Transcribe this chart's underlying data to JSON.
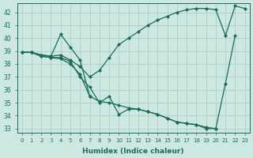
{
  "xlabel": "Humidex (Indice chaleur)",
  "bg_color": "#cce8e0",
  "grid_color": "#aad0c8",
  "line_color": "#1a6b5a",
  "xlim": [
    -0.5,
    23.5
  ],
  "ylim": [
    32.7,
    42.7
  ],
  "yticks": [
    33,
    34,
    35,
    36,
    37,
    38,
    39,
    40,
    41,
    42
  ],
  "xticks": [
    0,
    1,
    2,
    3,
    4,
    5,
    6,
    7,
    8,
    9,
    10,
    11,
    12,
    13,
    14,
    15,
    16,
    17,
    18,
    19,
    20,
    21,
    22,
    23
  ],
  "series": [
    {
      "comment": "Triangle line: 0->4 up, 4->5->6->7 down",
      "x": [
        0,
        1,
        2,
        3,
        4,
        5,
        6,
        7
      ],
      "y": [
        38.9,
        38.9,
        38.7,
        38.6,
        40.3,
        39.3,
        38.3,
        35.5
      ]
    },
    {
      "x": [
        0,
        1,
        2,
        3,
        4,
        5,
        6,
        7,
        8,
        9,
        10,
        11,
        12,
        13,
        14,
        15,
        16,
        17,
        18,
        19,
        20,
        21,
        22,
        23
      ],
      "y": [
        38.9,
        38.9,
        38.7,
        38.6,
        38.7,
        38.3,
        37.8,
        37.0,
        37.5,
        38.5,
        39.5,
        40.0,
        40.5,
        41.0,
        41.4,
        41.7,
        42.0,
        42.2,
        42.3,
        42.3,
        42.2,
        40.2,
        42.5,
        42.3
      ]
    },
    {
      "x": [
        0,
        1,
        2,
        3,
        4,
        5,
        6,
        7,
        8,
        9,
        10,
        11,
        12,
        13,
        14,
        15,
        16,
        17,
        18,
        19,
        20,
        21,
        22,
        23
      ],
      "y": [
        38.9,
        38.9,
        38.6,
        38.5,
        38.5,
        38.2,
        37.0,
        36.2,
        35.0,
        35.5,
        34.1,
        34.5,
        34.5,
        34.3,
        34.1,
        33.8,
        33.5,
        33.4,
        33.3,
        33.1,
        33.0,
        36.5,
        40.2,
        null
      ]
    },
    {
      "x": [
        0,
        1,
        2,
        3,
        4,
        5,
        6,
        7,
        8,
        9,
        10,
        11,
        12,
        13,
        14,
        15,
        16,
        17,
        18,
        19,
        20
      ],
      "y": [
        38.9,
        38.9,
        38.6,
        38.5,
        38.4,
        38.0,
        37.2,
        35.5,
        35.1,
        35.0,
        34.8,
        34.6,
        34.5,
        34.3,
        34.1,
        33.8,
        33.5,
        33.4,
        33.3,
        33.0,
        33.0
      ]
    }
  ]
}
